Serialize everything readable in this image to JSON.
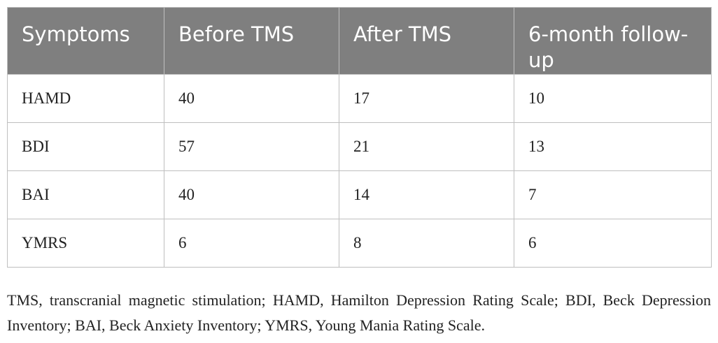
{
  "table": {
    "header": [
      "Symptoms",
      "Before TMS",
      "After TMS",
      "6-month follow-up"
    ],
    "rows": [
      [
        "HAMD",
        40,
        17,
        10
      ],
      [
        "BDI",
        57,
        21,
        13
      ],
      [
        "BAI",
        40,
        14,
        7
      ],
      [
        "YMRS",
        6,
        8,
        6
      ]
    ]
  },
  "footnote": "TMS, transcranial magnetic stimulation; HAMD, Hamilton Depression Rating Scale; BDI, Beck Depression Inventory; BAI, Beck Anxiety Inventory; YMRS, Young Mania Rating Scale."
}
